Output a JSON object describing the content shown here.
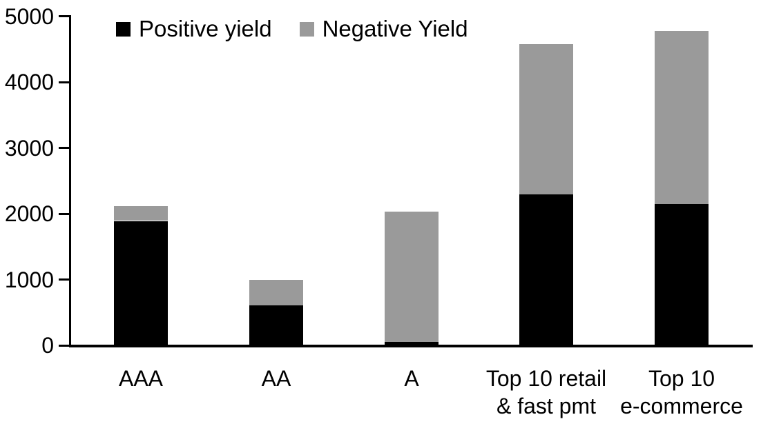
{
  "chart_data": {
    "type": "bar",
    "stacked": true,
    "title": "",
    "xlabel": "",
    "ylabel": "",
    "categories": [
      "AAA",
      "AA",
      "A",
      "Top 10 retail\n& fast pmt",
      "Top 10\ne-commerce"
    ],
    "series": [
      {
        "name": "Positive yield",
        "color": "#000000",
        "values": [
          1890,
          610,
          50,
          2290,
          2150
        ]
      },
      {
        "name": "Negative Yield",
        "color": "#9A9A9A",
        "values": [
          230,
          390,
          1980,
          2290,
          2630
        ]
      }
    ],
    "totals": [
      2120,
      1000,
      2030,
      4580,
      4780
    ],
    "ylim": [
      0,
      5000
    ],
    "yticks": [
      0,
      1000,
      2000,
      3000,
      4000,
      5000
    ],
    "legend_position": "top-left",
    "grid": false,
    "background_color": "#FFFFFF",
    "axis_color": "#000000",
    "text_color": "#000000"
  }
}
